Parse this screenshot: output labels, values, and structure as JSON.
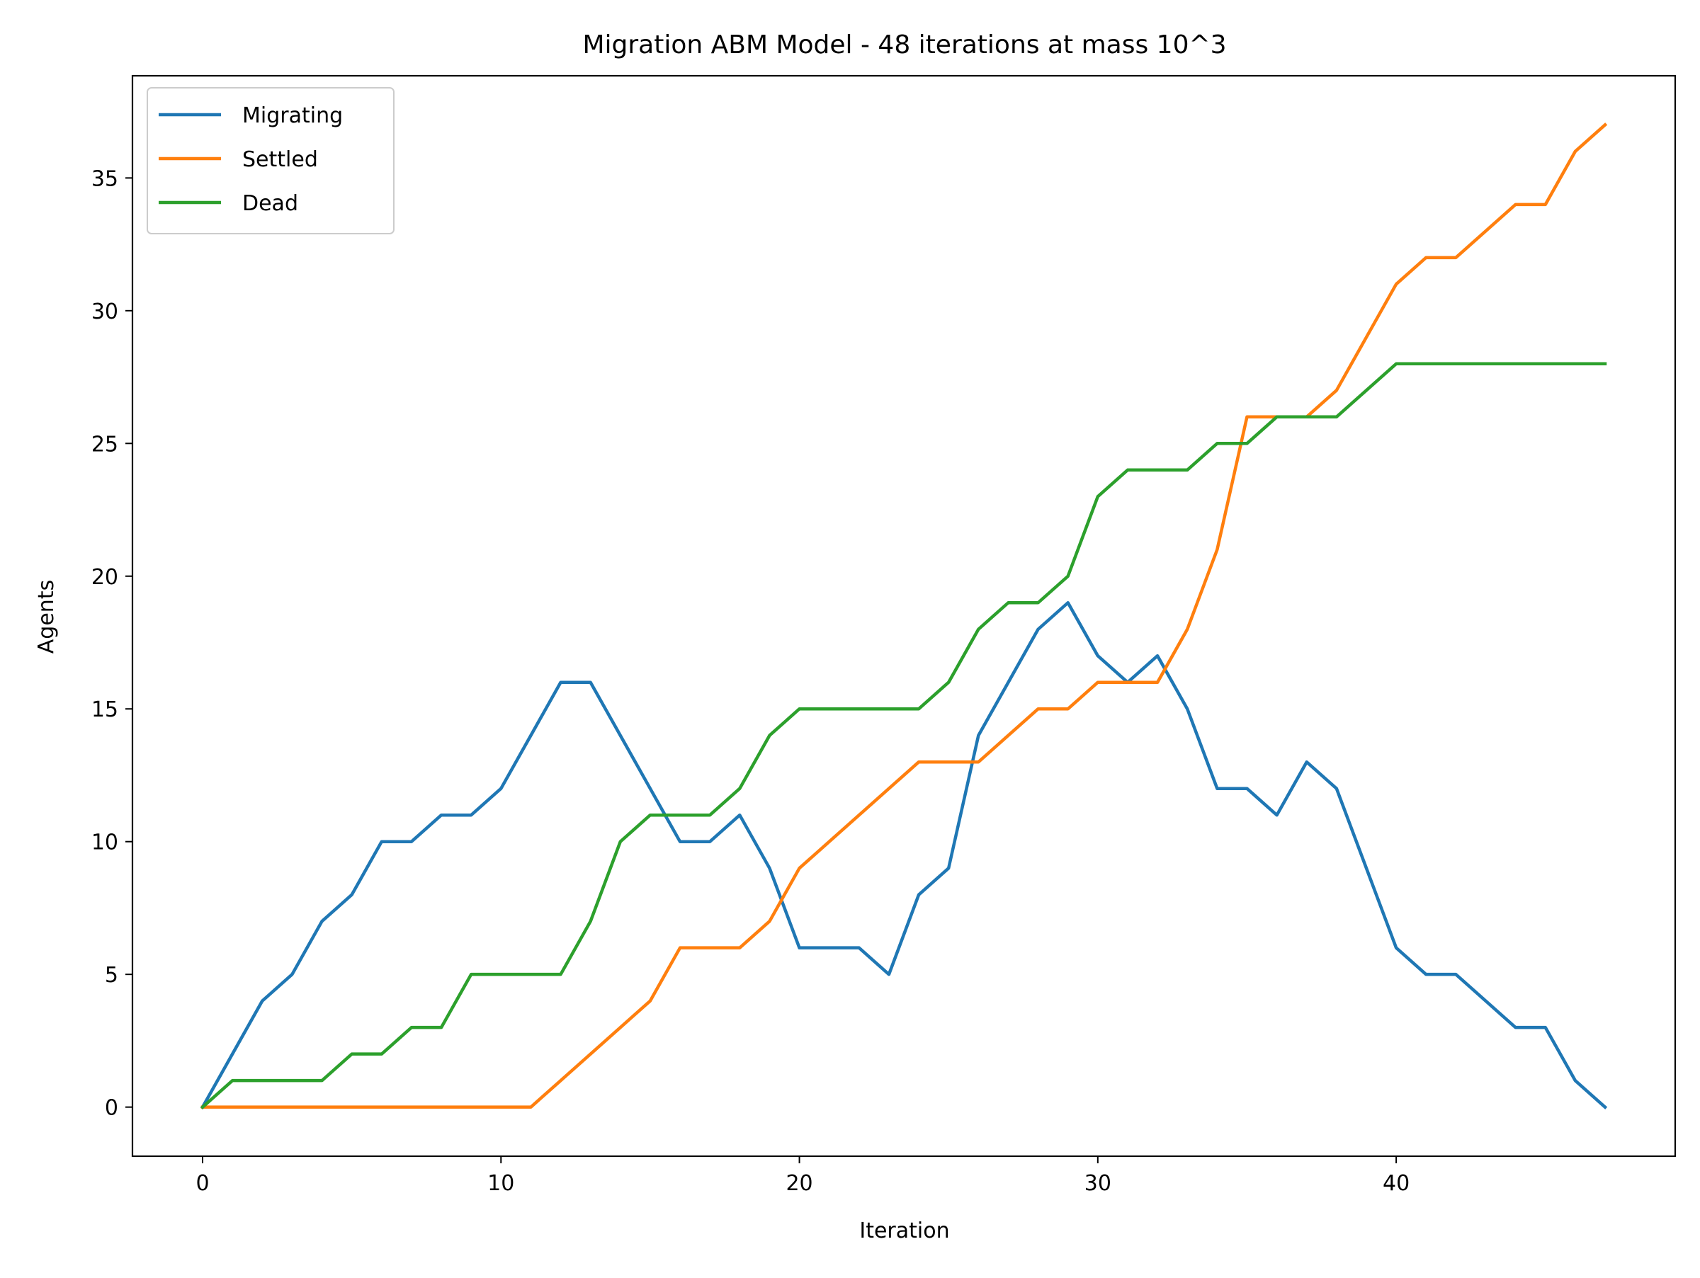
{
  "chart_data": {
    "type": "line",
    "title": "Migration ABM Model - 48 iterations at mass 10^3",
    "xlabel": "Iteration",
    "ylabel": "Agents",
    "xlim": [
      -2.35,
      49.35
    ],
    "ylim": [
      -1.85,
      38.85
    ],
    "xticks": [
      0,
      10,
      20,
      30,
      40
    ],
    "yticks": [
      0,
      5,
      10,
      15,
      20,
      25,
      30,
      35
    ],
    "grid": false,
    "legend_position": "top-left",
    "x": [
      0,
      1,
      2,
      3,
      4,
      5,
      6,
      7,
      8,
      9,
      10,
      11,
      12,
      13,
      14,
      15,
      16,
      17,
      18,
      19,
      20,
      21,
      22,
      23,
      24,
      25,
      26,
      27,
      28,
      29,
      30,
      31,
      32,
      33,
      34,
      35,
      36,
      37,
      38,
      39,
      40,
      41,
      42,
      43,
      44,
      45,
      46,
      47
    ],
    "series": [
      {
        "name": "Migrating",
        "color": "#1f77b4",
        "values": [
          0,
          2,
          4,
          5,
          7,
          8,
          10,
          10,
          11,
          11,
          12,
          14,
          16,
          16,
          14,
          12,
          10,
          10,
          11,
          9,
          6,
          6,
          6,
          5,
          8,
          9,
          14,
          16,
          18,
          19,
          17,
          16,
          17,
          15,
          12,
          12,
          11,
          13,
          12,
          9,
          6,
          5,
          5,
          4,
          3,
          3,
          1,
          0
        ]
      },
      {
        "name": "Settled",
        "color": "#ff7f0e",
        "values": [
          0,
          0,
          0,
          0,
          0,
          0,
          0,
          0,
          0,
          0,
          0,
          0,
          1,
          2,
          3,
          4,
          6,
          6,
          6,
          7,
          9,
          10,
          11,
          12,
          13,
          13,
          13,
          14,
          15,
          15,
          16,
          16,
          16,
          18,
          21,
          26,
          26,
          26,
          27,
          29,
          31,
          32,
          32,
          33,
          34,
          34,
          36,
          37
        ]
      },
      {
        "name": "Dead",
        "color": "#2ca02c",
        "values": [
          0,
          1,
          1,
          1,
          1,
          2,
          2,
          3,
          3,
          5,
          5,
          5,
          5,
          7,
          10,
          11,
          11,
          11,
          12,
          14,
          15,
          15,
          15,
          15,
          15,
          16,
          18,
          19,
          19,
          20,
          23,
          24,
          24,
          24,
          25,
          25,
          26,
          26,
          26,
          27,
          28,
          28,
          28,
          28,
          28,
          28,
          28,
          28
        ]
      }
    ]
  }
}
